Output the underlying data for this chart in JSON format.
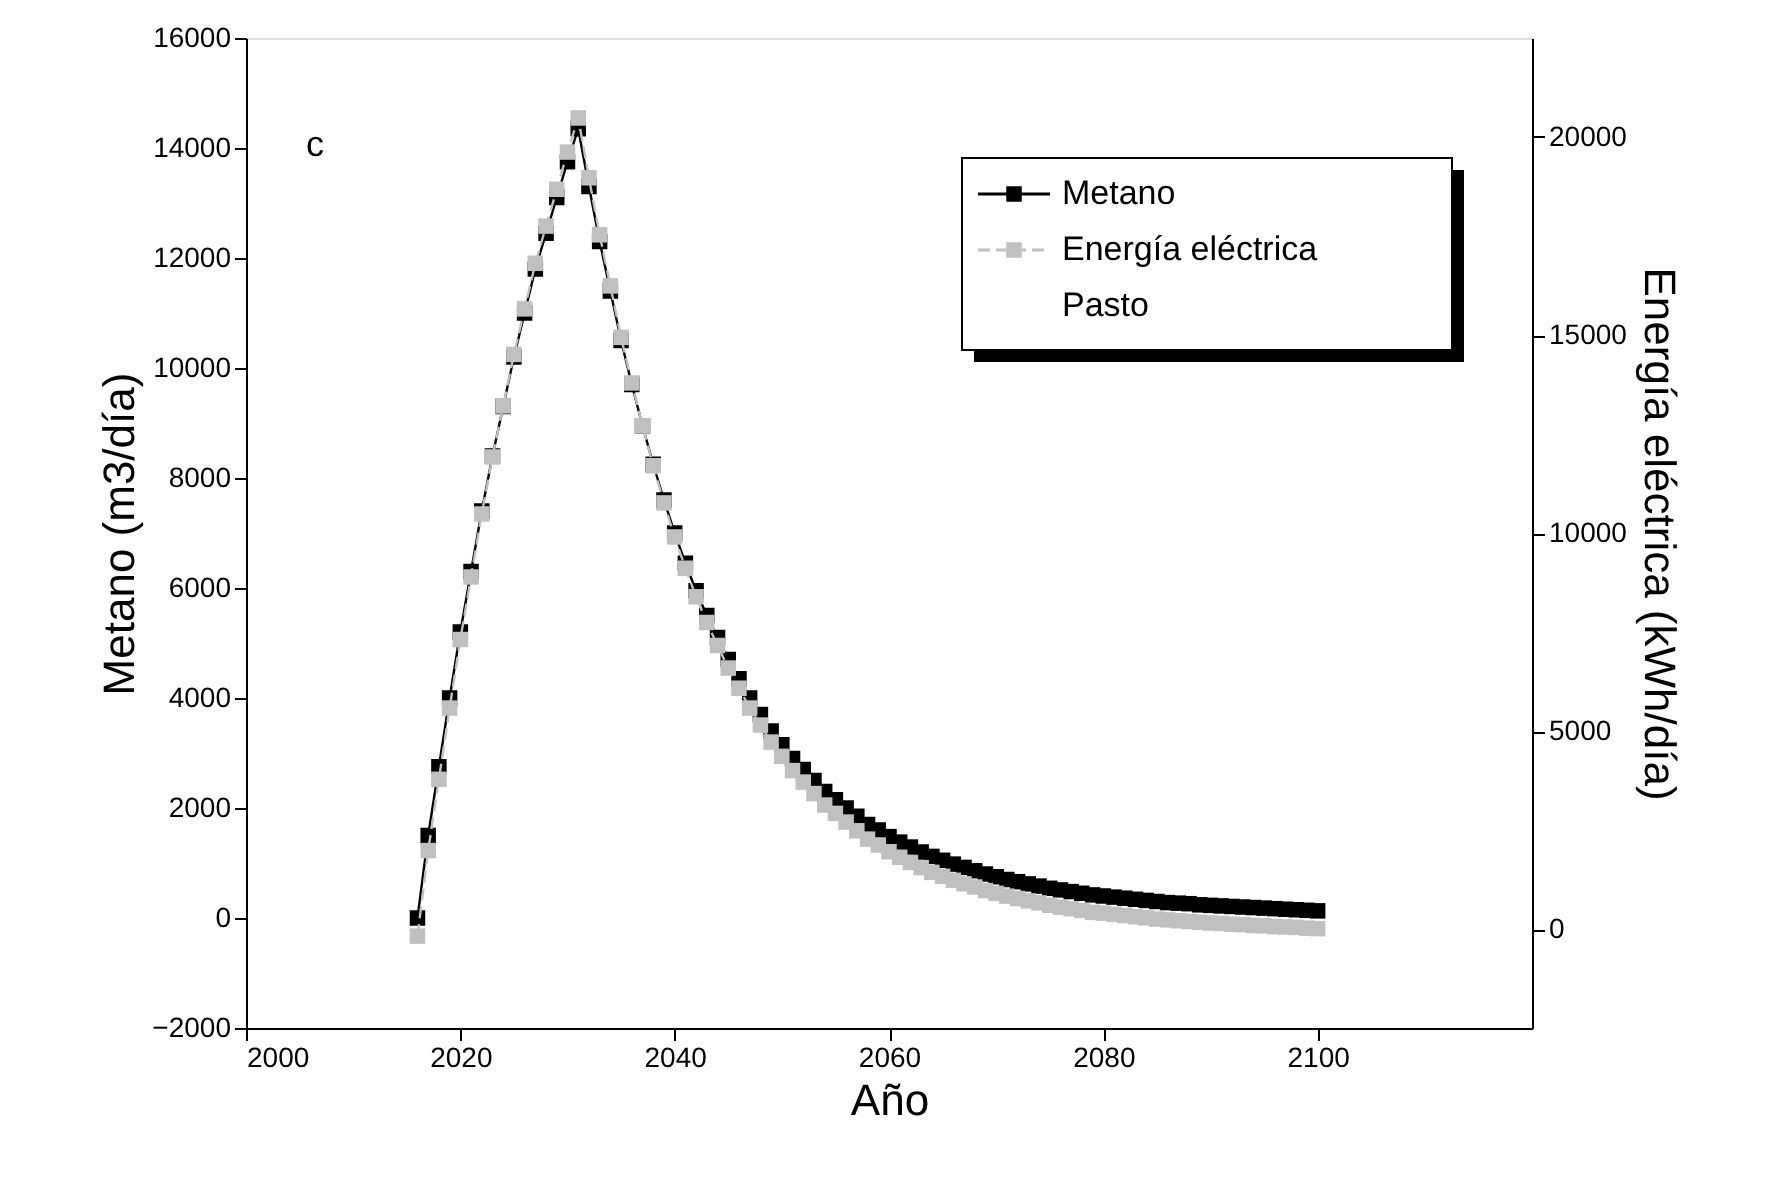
{
  "chart_data": {
    "type": "line",
    "xlabel": "Año",
    "ylabel": "Metano (m3/día)",
    "y2label": "Energía eléctrica (kWh/día)",
    "x": [
      2016,
      2017,
      2018,
      2019,
      2020,
      2021,
      2022,
      2023,
      2024,
      2025,
      2026,
      2027,
      2028,
      2029,
      2030,
      2031,
      2032,
      2033,
      2034,
      2035,
      2036,
      2037,
      2038,
      2039,
      2040,
      2041,
      2042,
      2043,
      2044,
      2045,
      2046,
      2047,
      2048,
      2049,
      2050,
      2051,
      2052,
      2053,
      2054,
      2055,
      2056,
      2057,
      2058,
      2059,
      2060,
      2061,
      2062,
      2063,
      2064,
      2065,
      2066,
      2067,
      2068,
      2069,
      2070,
      2071,
      2072,
      2073,
      2074,
      2075,
      2076,
      2077,
      2078,
      2079,
      2080,
      2081,
      2082,
      2083,
      2084,
      2085,
      2086,
      2087,
      2088,
      2089,
      2090,
      2091,
      2092,
      2093,
      2094,
      2095,
      2096,
      2097,
      2098,
      2099,
      2100
    ],
    "series": [
      {
        "name": "Metano",
        "color": "#000000",
        "line_style": "solid",
        "values": [
          0,
          1500,
          2750,
          4000,
          5200,
          6300,
          7400,
          8400,
          9300,
          10200,
          11000,
          11800,
          12450,
          13100,
          13750,
          14350,
          13300,
          12300,
          11400,
          10500,
          9700,
          8950,
          8250,
          7600,
          7000,
          6450,
          5950,
          5500,
          5100,
          4700,
          4350,
          4000,
          3700,
          3400,
          3150,
          2900,
          2700,
          2500,
          2300,
          2150,
          2000,
          1850,
          1700,
          1600,
          1480,
          1380,
          1290,
          1200,
          1120,
          1050,
          980,
          920,
          860,
          800,
          750,
          700,
          660,
          620,
          580,
          540,
          510,
          480,
          450,
          420,
          400,
          380,
          360,
          340,
          320,
          300,
          280,
          270,
          260,
          240,
          230,
          220,
          210,
          200,
          190,
          180,
          170,
          160,
          150,
          140,
          130
        ]
      },
      {
        "name": "Energía eléctrica",
        "color": "#c0c0c0",
        "line_style": "dashed",
        "axis": "y2",
        "values": [
          -180,
          1980,
          3780,
          5580,
          7310,
          8890,
          10480,
          11920,
          13210,
          14510,
          15660,
          16810,
          17750,
          18680,
          19620,
          20480,
          18970,
          17530,
          16240,
          14940,
          13790,
          12710,
          11700,
          10760,
          9900,
          9110,
          8390,
          7740,
          7160,
          6590,
          6080,
          5580,
          5150,
          4720,
          4360,
          4000,
          3710,
          3420,
          3130,
          2920,
          2700,
          2480,
          2270,
          2120,
          1950,
          1810,
          1680,
          1550,
          1430,
          1330,
          1230,
          1140,
          1060,
          970,
          900,
          830,
          770,
          710,
          660,
          600,
          550,
          510,
          470,
          420,
          400,
          370,
          340,
          310,
          280,
          250,
          230,
          210,
          190,
          170,
          150,
          140,
          120,
          110,
          90,
          80,
          60,
          50,
          40,
          20,
          10
        ]
      }
    ],
    "legend_title": "Pasto",
    "annotations": [
      "c"
    ],
    "marker": "square",
    "legend": "top right",
    "grid": false,
    "xlim": [
      2000,
      2120
    ],
    "xticks": [
      2000,
      2020,
      2040,
      2060,
      2080,
      2100
    ],
    "ylim": [
      -2000,
      16000
    ],
    "yticks": [
      -2000,
      0,
      2000,
      4000,
      6000,
      8000,
      10000,
      12000,
      14000,
      16000
    ],
    "y2lim": [
      -2500,
      22500
    ],
    "y2ticks": [
      0,
      5000,
      10000,
      15000,
      20000
    ]
  }
}
